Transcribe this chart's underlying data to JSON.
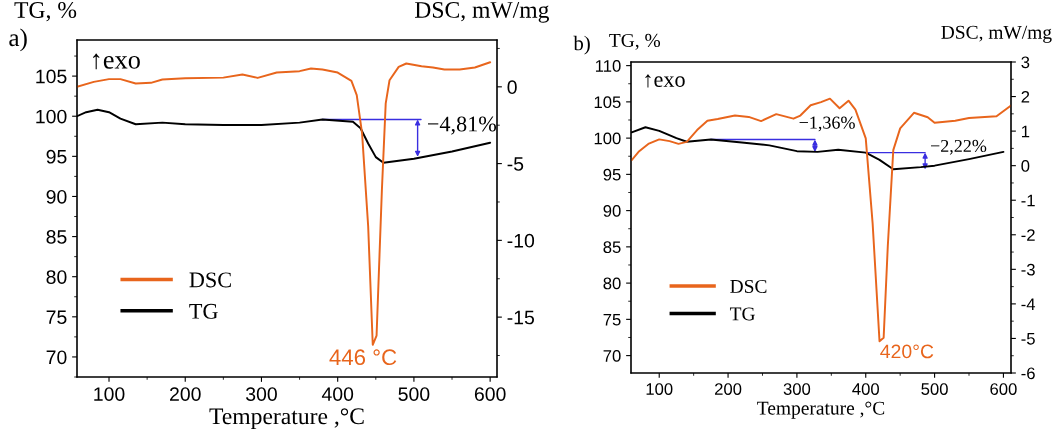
{
  "chart_data": [
    {
      "type": "line",
      "xlabel": "Temperature ,°C",
      "ylabel": "TG, %",
      "y2label": "DSC, mW/mg",
      "legend": "bottom left",
      "grid": false,
      "xlim": [
        58,
        609
      ],
      "xticks": [
        100,
        200,
        300,
        400,
        500,
        600
      ],
      "ylim": [
        67.5,
        109.5
      ],
      "yticks": [
        70,
        75,
        80,
        85,
        90,
        95,
        100,
        105
      ],
      "y2lim": [
        -18.9,
        3.05
      ],
      "y2ticks": [
        -15,
        -10,
        -5,
        0
      ],
      "annotations": [
        "a)",
        "↑exo",
        {
          "text": "−4,81%",
          "x": 380,
          "y": 99.6
        },
        "446 °C"
      ],
      "series": [
        {
          "name": "DSC",
          "color": "#e8651c",
          "axis": "y2",
          "x": [
            58,
            80,
            100,
            115,
            135,
            155,
            170,
            200,
            250,
            275,
            295,
            320,
            350,
            365,
            380,
            400,
            418,
            425,
            432,
            440,
            446,
            451,
            458,
            463,
            468,
            480,
            490,
            510,
            525,
            540,
            560,
            580,
            600
          ],
          "values": [
            0.0,
            0.32,
            0.5,
            0.5,
            0.22,
            0.26,
            0.48,
            0.56,
            0.6,
            0.8,
            0.58,
            0.93,
            1.02,
            1.19,
            1.13,
            0.93,
            0.39,
            -0.54,
            -3.03,
            -9.1,
            -16.8,
            -16.2,
            -6.7,
            -1.08,
            0.43,
            1.3,
            1.52,
            1.34,
            1.26,
            1.13,
            1.13,
            1.26,
            1.6
          ]
        },
        {
          "name": "TG",
          "color": "#000000",
          "x": [
            58,
            70,
            85,
            100,
            115,
            135,
            170,
            200,
            250,
            300,
            350,
            380,
            420,
            430,
            440,
            450,
            460,
            500,
            550,
            600
          ],
          "values": [
            100,
            100.5,
            100.8,
            100.5,
            99.7,
            99.0,
            99.2,
            99.0,
            98.9,
            98.9,
            99.2,
            99.6,
            99.3,
            98.5,
            96.6,
            94.9,
            94.2,
            94.7,
            95.6,
            96.7
          ]
        }
      ]
    },
    {
      "type": "line",
      "xlabel": "Temperature ,°C",
      "ylabel": "TG, %",
      "y2label": "DSC, mW/mg",
      "legend": "bottom left",
      "grid": false,
      "xlim": [
        59,
        611
      ],
      "xticks": [
        100,
        200,
        300,
        400,
        500,
        600
      ],
      "ylim": [
        67.6,
        110.5
      ],
      "yticks": [
        70,
        75,
        80,
        85,
        90,
        95,
        100,
        105,
        110
      ],
      "y2lim": [
        -6,
        3
      ],
      "y2ticks": [
        -6,
        -5,
        -4,
        -3,
        -2,
        -1,
        0,
        1,
        2,
        3
      ],
      "annotations": [
        "b)",
        "↑exo",
        {
          "text": "−1,36%",
          "x": 175,
          "y": 99.8
        },
        {
          "text": "−2,22%",
          "x": 400,
          "y": 98.0
        },
        "420°C"
      ],
      "series": [
        {
          "name": "DSC",
          "color": "#e8651c",
          "axis": "y2",
          "x": [
            60,
            70,
            85,
            100,
            115,
            128,
            140,
            155,
            170,
            185,
            210,
            230,
            248,
            270,
            295,
            305,
            320,
            335,
            348,
            362,
            375,
            385,
            400,
            410,
            420,
            426,
            432,
            440,
            450,
            470,
            490,
            500,
            530,
            550,
            590,
            611
          ],
          "values": [
            0.16,
            0.4,
            0.64,
            0.76,
            0.71,
            0.63,
            0.69,
            1.03,
            1.3,
            1.35,
            1.45,
            1.41,
            1.29,
            1.49,
            1.36,
            1.45,
            1.75,
            1.84,
            1.94,
            1.66,
            1.88,
            1.62,
            0.79,
            -1.67,
            -5.08,
            -4.98,
            -2.34,
            0.45,
            1.08,
            1.53,
            1.4,
            1.24,
            1.3,
            1.38,
            1.43,
            1.74
          ]
        },
        {
          "name": "TG",
          "color": "#000000",
          "x": [
            60,
            80,
            100,
            125,
            140,
            175,
            220,
            260,
            300,
            330,
            360,
            400,
            420,
            440,
            480,
            500,
            550,
            600
          ],
          "values": [
            100.8,
            101.5,
            101.0,
            100,
            99.5,
            99.8,
            99.4,
            99.0,
            98.2,
            98.1,
            98.4,
            98.0,
            97.0,
            95.7,
            96.0,
            96.2,
            97.1,
            98.1
          ]
        }
      ]
    }
  ]
}
